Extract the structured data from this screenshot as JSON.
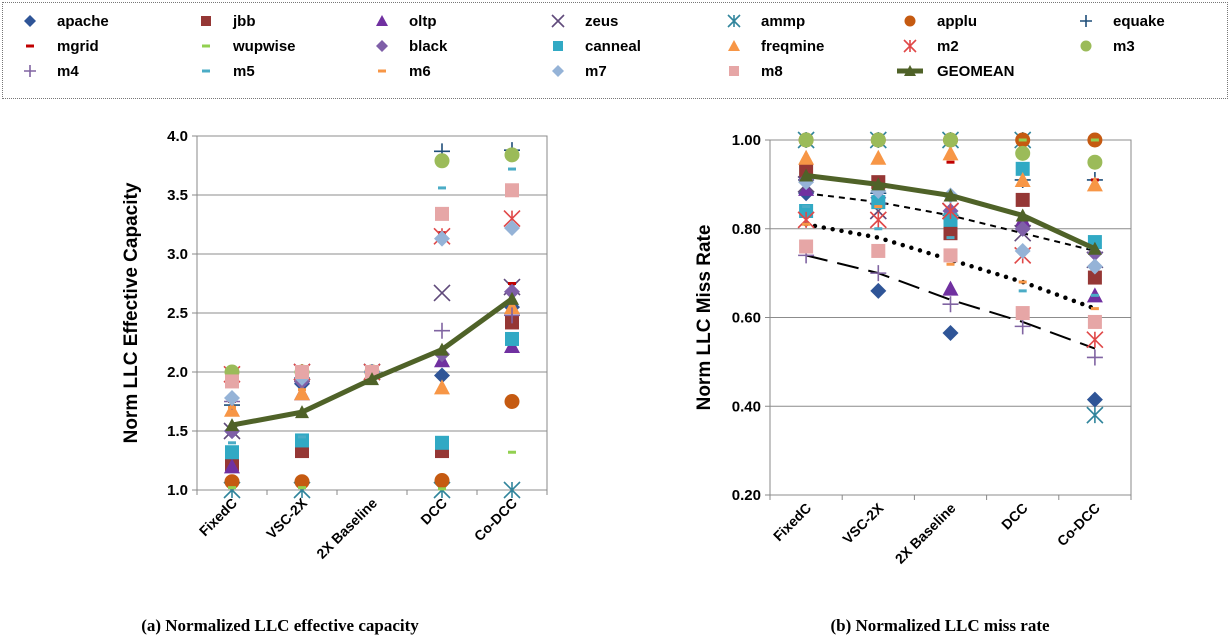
{
  "chart_data": [
    {
      "type": "scatter",
      "title": "",
      "caption": "(a) Normalized LLC effective capacity",
      "ylabel": "Norm LLC Effective Capacity",
      "xlabel": "",
      "ylim": [
        1.0,
        4.0
      ],
      "yticks": [
        "1.0",
        "1.5",
        "2.0",
        "2.5",
        "3.0",
        "3.5",
        "4.0"
      ],
      "categories": [
        "FixedC",
        "VSC-2X",
        "2X Baseline",
        "DCC",
        "Co-DCC"
      ],
      "grid": true,
      "series": [
        {
          "name": "apache",
          "values": [
            1.5,
            1.9,
            2.0,
            1.97,
            2.55
          ]
        },
        {
          "name": "jbb",
          "values": [
            1.22,
            1.33,
            2.0,
            1.33,
            2.42
          ]
        },
        {
          "name": "oltp",
          "values": [
            1.2,
            1.82,
            2.0,
            2.1,
            2.22
          ]
        },
        {
          "name": "zeus",
          "values": [
            1.5,
            2.0,
            2.0,
            2.67,
            2.72
          ]
        },
        {
          "name": "ammp",
          "values": [
            1.0,
            1.0,
            2.0,
            1.0,
            1.0
          ]
        },
        {
          "name": "applu",
          "values": [
            1.07,
            1.07,
            2.0,
            1.08,
            1.75
          ]
        },
        {
          "name": "equake",
          "values": [
            1.72,
            1.95,
            2.0,
            3.87,
            3.88
          ]
        },
        {
          "name": "mgrid",
          "values": [
            1.75,
            1.9,
            2.0,
            3.18,
            2.75
          ]
        },
        {
          "name": "wupwise",
          "values": [
            1.02,
            1.02,
            2.0,
            1.01,
            1.32
          ]
        },
        {
          "name": "black",
          "values": [
            1.5,
            1.92,
            2.0,
            2.15,
            2.68
          ]
        },
        {
          "name": "canneal",
          "values": [
            1.32,
            1.42,
            2.0,
            1.4,
            2.28
          ]
        },
        {
          "name": "freqmine",
          "values": [
            1.68,
            1.82,
            2.0,
            1.87,
            2.55
          ]
        },
        {
          "name": "m2",
          "values": [
            1.98,
            2.0,
            2.0,
            3.15,
            3.3
          ]
        },
        {
          "name": "m3",
          "values": [
            2.0,
            2.0,
            2.0,
            3.79,
            3.84
          ]
        },
        {
          "name": "m4",
          "values": [
            1.75,
            1.92,
            2.0,
            2.35,
            2.48
          ]
        },
        {
          "name": "m5",
          "values": [
            1.4,
            1.45,
            2.0,
            3.56,
            3.72
          ]
        },
        {
          "name": "m6",
          "values": [
            1.7,
            1.85,
            2.0,
            3.15,
            2.6
          ]
        },
        {
          "name": "m7",
          "values": [
            1.78,
            1.95,
            2.0,
            3.13,
            3.22
          ]
        },
        {
          "name": "m8",
          "values": [
            1.92,
            2.0,
            2.0,
            3.34,
            3.54
          ]
        },
        {
          "name": "GEOMEAN",
          "values": [
            1.55,
            1.66,
            1.94,
            2.19,
            2.62
          ]
        }
      ]
    },
    {
      "type": "scatter",
      "title": "",
      "caption": "(b) Normalized LLC miss rate",
      "ylabel": "Norm LLC Miss Rate",
      "xlabel": "",
      "ylim": [
        0.2,
        1.0
      ],
      "yticks": [
        "0.20",
        "0.40",
        "0.60",
        "0.80",
        "1.00"
      ],
      "categories": [
        "FixedC",
        "VSC-2X",
        "2X Baseline",
        "DCC",
        "Co-DCC"
      ],
      "grid": true,
      "series": [
        {
          "name": "apache",
          "values": [
            0.88,
            0.66,
            0.565,
            0.8,
            0.415
          ]
        },
        {
          "name": "jbb",
          "values": [
            0.93,
            0.905,
            0.79,
            0.865,
            0.69
          ]
        },
        {
          "name": "oltp",
          "values": [
            0.89,
            0.87,
            0.665,
            0.82,
            0.65
          ]
        },
        {
          "name": "zeus",
          "values": [
            0.9,
            0.84,
            0.84,
            0.79,
            0.73
          ]
        },
        {
          "name": "ammp",
          "values": [
            1.0,
            1.0,
            1.0,
            1.0,
            0.38
          ]
        },
        {
          "name": "applu",
          "values": [
            1.0,
            1.0,
            1.0,
            1.0,
            1.0
          ]
        },
        {
          "name": "equake",
          "values": [
            0.91,
            0.88,
            0.83,
            0.91,
            0.91
          ]
        },
        {
          "name": "mgrid",
          "values": [
            0.95,
            0.95,
            0.95,
            0.93,
            0.91
          ]
        },
        {
          "name": "wupwise",
          "values": [
            1.0,
            1.0,
            1.0,
            1.0,
            1.0
          ]
        },
        {
          "name": "black",
          "values": [
            0.91,
            0.87,
            0.84,
            0.8,
            0.745
          ]
        },
        {
          "name": "canneal",
          "values": [
            0.84,
            0.86,
            0.82,
            0.935,
            0.77
          ]
        },
        {
          "name": "freqmine",
          "values": [
            0.96,
            0.96,
            0.97,
            0.91,
            0.9
          ]
        },
        {
          "name": "m2",
          "values": [
            0.82,
            0.82,
            0.84,
            0.74,
            0.55
          ]
        },
        {
          "name": "m3",
          "values": [
            1.0,
            1.0,
            1.0,
            0.97,
            0.95
          ]
        },
        {
          "name": "m4",
          "values": [
            0.74,
            0.7,
            0.63,
            0.58,
            0.51
          ]
        },
        {
          "name": "m5",
          "values": [
            0.85,
            0.8,
            0.78,
            0.66,
            0.65
          ]
        },
        {
          "name": "m6",
          "values": [
            0.81,
            0.85,
            0.72,
            0.68,
            0.62
          ]
        },
        {
          "name": "m7",
          "values": [
            0.905,
            0.885,
            0.875,
            0.75,
            0.715
          ]
        },
        {
          "name": "m8",
          "values": [
            0.76,
            0.75,
            0.74,
            0.61,
            0.59
          ]
        },
        {
          "name": "GEOMEAN",
          "values": [
            0.92,
            0.9,
            0.875,
            0.83,
            0.755
          ]
        }
      ],
      "reference_lines": [
        {
          "style": "short-dash",
          "values": [
            0.88,
            0.86,
            0.83,
            0.79,
            0.75
          ]
        },
        {
          "style": "dots",
          "values": [
            0.81,
            0.78,
            0.73,
            0.68,
            0.62
          ]
        },
        {
          "style": "long-dash",
          "values": [
            0.74,
            0.7,
            0.64,
            0.59,
            0.53
          ]
        }
      ]
    }
  ],
  "legend": {
    "items": [
      {
        "label": "apache",
        "marker": "diamond",
        "color": "#2F5597"
      },
      {
        "label": "jbb",
        "marker": "square",
        "color": "#953735"
      },
      {
        "label": "oltp",
        "marker": "triangle",
        "color": "#7030A0"
      },
      {
        "label": "zeus",
        "marker": "x",
        "color": "#604A7B"
      },
      {
        "label": "ammp",
        "marker": "asterisk",
        "color": "#31859C"
      },
      {
        "label": "applu",
        "marker": "circle",
        "color": "#C55A11"
      },
      {
        "label": "equake",
        "marker": "plus",
        "color": "#1F4E79"
      },
      {
        "label": "mgrid",
        "marker": "dash",
        "color": "#C00000"
      },
      {
        "label": "wupwise",
        "marker": "dash",
        "color": "#92D050"
      },
      {
        "label": "black",
        "marker": "diamond",
        "color": "#7F5FA8"
      },
      {
        "label": "canneal",
        "marker": "square",
        "color": "#31A9C4"
      },
      {
        "label": "freqmine",
        "marker": "triangle",
        "color": "#F79646"
      },
      {
        "label": "m2",
        "marker": "asterisk",
        "color": "#E04848"
      },
      {
        "label": "m3",
        "marker": "circle",
        "color": "#9BBB59"
      },
      {
        "label": "m4",
        "marker": "plus",
        "color": "#8064A2"
      },
      {
        "label": "m5",
        "marker": "dash",
        "color": "#4BACC6"
      },
      {
        "label": "m6",
        "marker": "dash",
        "color": "#F79646"
      },
      {
        "label": "m7",
        "marker": "diamond",
        "color": "#95B3D7"
      },
      {
        "label": "m8",
        "marker": "square",
        "color": "#E6A6A6"
      },
      {
        "label": "GEOMEAN",
        "marker": "line-triangle",
        "color": "#4F6228"
      }
    ]
  }
}
